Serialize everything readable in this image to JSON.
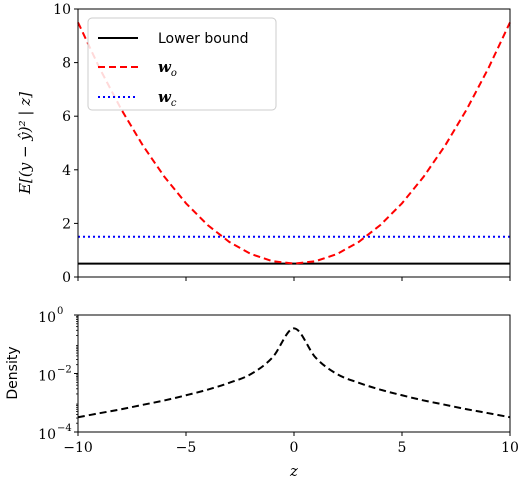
{
  "chart_data": [
    {
      "type": "line",
      "ylabel": "E[(y − ŷ)² | z]",
      "xlabel": "",
      "xlim": [
        -10,
        10
      ],
      "ylim": [
        0,
        10
      ],
      "xticks": [
        -10,
        -5,
        0,
        5,
        10
      ],
      "yticks": [
        0,
        2,
        4,
        6,
        8,
        10
      ],
      "ytick_labels": [
        "0",
        "2",
        "4",
        "6",
        "8",
        "10"
      ],
      "legend_position": "top-left",
      "legend": {
        "lower": "Lower bound",
        "wo_main": "w",
        "wo_sub": "o",
        "wc_main": "w",
        "wc_sub": "c"
      },
      "series": [
        {
          "name": "Lower bound",
          "color": "#000000",
          "style": "solid",
          "x": [
            -10,
            -8,
            -6,
            -4,
            -2,
            0,
            2,
            4,
            6,
            8,
            10
          ],
          "y": [
            0.5,
            0.5,
            0.5,
            0.5,
            0.5,
            0.5,
            0.5,
            0.5,
            0.5,
            0.5,
            0.5
          ]
        },
        {
          "name": "w_o",
          "color": "#ff0000",
          "style": "dashed",
          "x": [
            -10,
            -9,
            -8,
            -7,
            -6,
            -5,
            -4,
            -3,
            -2,
            -1,
            0,
            1,
            2,
            3,
            4,
            5,
            6,
            7,
            8,
            9,
            10
          ],
          "y": [
            9.5,
            7.79,
            6.26,
            4.91,
            3.74,
            2.75,
            1.94,
            1.31,
            0.86,
            0.59,
            0.5,
            0.59,
            0.86,
            1.31,
            1.94,
            2.75,
            3.74,
            4.91,
            6.26,
            7.79,
            9.5
          ]
        },
        {
          "name": "w_c",
          "color": "#0000ff",
          "style": "dotted",
          "x": [
            -10,
            -8,
            -6,
            -4,
            -2,
            0,
            2,
            4,
            6,
            8,
            10
          ],
          "y": [
            1.5,
            1.5,
            1.5,
            1.5,
            1.5,
            1.5,
            1.5,
            1.5,
            1.5,
            1.5,
            1.5
          ]
        }
      ]
    },
    {
      "type": "line",
      "ylabel": "Density",
      "xlabel": "z",
      "xlim": [
        -10,
        10
      ],
      "ylim_log10": [
        -4,
        0
      ],
      "yscale": "log",
      "xticks": [
        -10,
        -5,
        0,
        5,
        10
      ],
      "xtick_labels": [
        "−10",
        "−5",
        "0",
        "5",
        "10"
      ],
      "yticks_log10": [
        0,
        -2,
        -4
      ],
      "ytick_base": "10",
      "ytick_exps": [
        "0",
        "−2",
        "−4"
      ],
      "series": [
        {
          "name": "density",
          "color": "#000000",
          "style": "dashed",
          "x": [
            -10,
            -9,
            -8,
            -7,
            -6,
            -5,
            -4,
            -3,
            -2,
            -1,
            0,
            1,
            2,
            3,
            4,
            5,
            6,
            7,
            8,
            9,
            10
          ],
          "y": [
            0.00032,
            0.00044,
            0.0006,
            0.00085,
            0.0012,
            0.0018,
            0.0028,
            0.0048,
            0.0095,
            0.035,
            0.35,
            0.035,
            0.0095,
            0.0048,
            0.0028,
            0.0018,
            0.0012,
            0.00085,
            0.0006,
            0.00044,
            0.00032
          ]
        }
      ]
    }
  ]
}
